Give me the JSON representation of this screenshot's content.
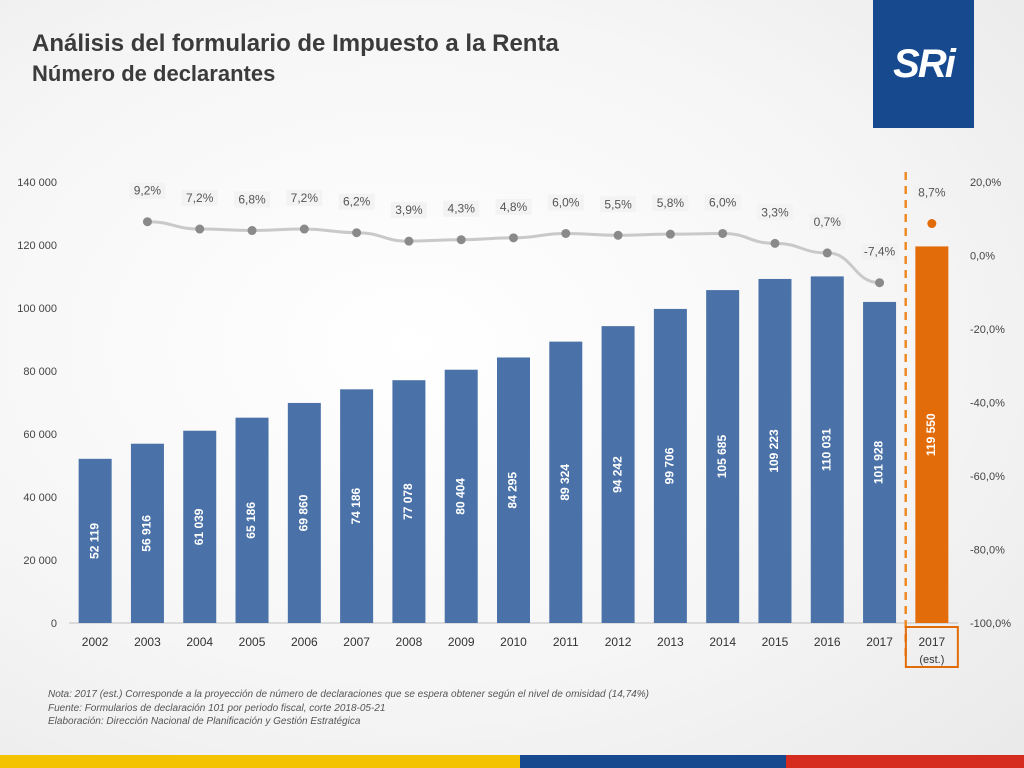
{
  "header": {
    "title": "Análisis del formulario de Impuesto a la Renta",
    "subtitle": "Número de declarantes"
  },
  "logo": {
    "text": "SRi"
  },
  "colors": {
    "bar": "#4a72a8",
    "highlight_bar": "#e36c0a",
    "line": "#c9c9c9",
    "marker": "#8a8a8a",
    "logo_bg": "#17498f"
  },
  "chart_data": {
    "type": "bar",
    "categories": [
      "2002",
      "2003",
      "2004",
      "2005",
      "2006",
      "2007",
      "2008",
      "2009",
      "2010",
      "2011",
      "2012",
      "2013",
      "2014",
      "2015",
      "2016",
      "2017",
      "2017\n(est.)"
    ],
    "series": [
      {
        "values": [
          52119,
          56916,
          61039,
          65186,
          69860,
          74186,
          77078,
          80404,
          84295,
          89324,
          94242,
          99706,
          105685,
          109223,
          110031,
          101928,
          119550
        ],
        "labels": [
          "52 119",
          "56 916",
          "61 039",
          "65 186",
          "69 860",
          "74 186",
          "77 078",
          "80 404",
          "84 295",
          "89 324",
          "94 242",
          "99 706",
          "105 685",
          "109 223",
          "110 031",
          "101 928",
          "119 550"
        ]
      },
      {
        "type": "line",
        "axis": "right",
        "values": [
          null,
          9.2,
          7.2,
          6.8,
          7.2,
          6.2,
          3.9,
          4.3,
          4.8,
          6.0,
          5.5,
          5.8,
          6.0,
          3.3,
          0.7,
          -7.4,
          8.7
        ],
        "labels": [
          "",
          "9,2%",
          "7,2%",
          "6,8%",
          "7,2%",
          "6,2%",
          "3,9%",
          "4,3%",
          "4,8%",
          "6,0%",
          "5,5%",
          "5,8%",
          "6,0%",
          "3,3%",
          "0,7%",
          "-7,4%",
          "8,7%"
        ]
      }
    ],
    "ylim": [
      0,
      140000
    ],
    "y_ticks": [
      "0",
      "20 000",
      "40 000",
      "60 000",
      "80 000",
      "100 000",
      "120 000",
      "140 000"
    ],
    "y2lim": [
      -100,
      20
    ],
    "y2_ticks": [
      "-100,0%",
      "-80,0%",
      "-60,0%",
      "-40,0%",
      "-20,0%",
      "0,0%",
      "20,0%"
    ],
    "grid": false,
    "highlighted_category": "2017\n(est.)"
  },
  "notes": [
    "Nota:  2017 (est.)  Corresponde a la proyección de número de declaraciones que se espera obtener según el nivel de omisidad (14,74%)",
    "Fuente: Formularios de declaración 101 por periodo fiscal, corte 2018-05-21",
    "Elaboración: Dirección Nacional de Planificación y Gestión Estratégica"
  ]
}
